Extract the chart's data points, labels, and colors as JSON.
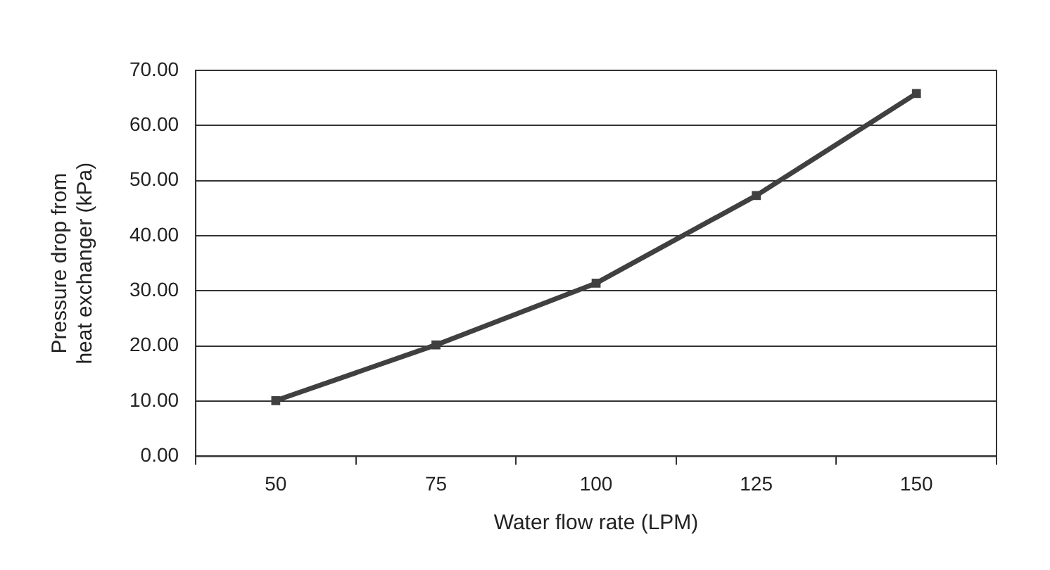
{
  "chart_data": {
    "type": "line",
    "xlabel": "Water flow rate (LPM)",
    "ylabel": "Pressure drop from heat exchanger (kPa)",
    "categories": [
      "50",
      "75",
      "100",
      "125",
      "150"
    ],
    "series": [
      {
        "color": "#404040",
        "values": [
          10.1,
          20.2,
          31.4,
          47.3,
          65.8
        ]
      }
    ],
    "ylim": [
      0,
      70
    ],
    "yticks": [
      {
        "value": 0,
        "label": "0.00"
      },
      {
        "value": 10,
        "label": "10.00"
      },
      {
        "value": 20,
        "label": "20.00"
      },
      {
        "value": 30,
        "label": "30.00"
      },
      {
        "value": 40,
        "label": "40.00"
      },
      {
        "value": 50,
        "label": "50.00"
      },
      {
        "value": 60,
        "label": "60.00"
      },
      {
        "value": 70,
        "label": "70.00"
      }
    ],
    "grid": "y",
    "legend": false,
    "marker": "square",
    "line_style": "solid"
  }
}
